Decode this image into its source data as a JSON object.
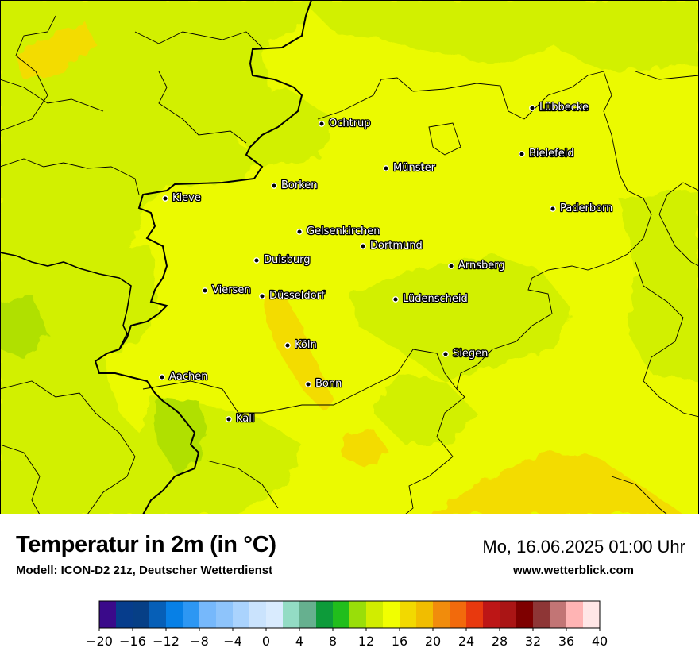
{
  "map": {
    "title": "Temperatur in 2m (in °C)",
    "model": "Modell: ICON-D2 21z, Deutscher Wetterdienst",
    "datetime": "Mo, 16.06.2025 01:00 Uhr",
    "website": "www.wetterblick.com",
    "cities": [
      {
        "name": "Lübbecke",
        "id": "luebbecke"
      },
      {
        "name": "Ochtrup",
        "id": "ochtrup"
      },
      {
        "name": "Bielefeld",
        "id": "bielefeld"
      },
      {
        "name": "Münster",
        "id": "muenster"
      },
      {
        "name": "Borken",
        "id": "borken"
      },
      {
        "name": "Kleve",
        "id": "kleve"
      },
      {
        "name": "Paderborn",
        "id": "paderborn"
      },
      {
        "name": "Gelsenkirchen",
        "id": "gelsenkirchen"
      },
      {
        "name": "Dortmund",
        "id": "dortmund"
      },
      {
        "name": "Duisburg",
        "id": "duisburg"
      },
      {
        "name": "Arnsberg",
        "id": "arnsberg"
      },
      {
        "name": "Viersen",
        "id": "viersen"
      },
      {
        "name": "Düsseldorf",
        "id": "duesseldorf"
      },
      {
        "name": "Lüdenscheid",
        "id": "luedenscheid"
      },
      {
        "name": "Köln",
        "id": "koeln"
      },
      {
        "name": "Siegen",
        "id": "siegen"
      },
      {
        "name": "Aachen",
        "id": "aachen"
      },
      {
        "name": "Bonn",
        "id": "bonn"
      },
      {
        "name": "Kall",
        "id": "kall"
      }
    ]
  },
  "legend": {
    "min": -20,
    "max": 40,
    "step": 2,
    "tick_values": [
      -20,
      -16,
      -12,
      -8,
      -4,
      0,
      4,
      8,
      12,
      16,
      20,
      24,
      28,
      32,
      36,
      40
    ],
    "tick_labels": [
      "−20",
      "−16",
      "−12",
      "−8",
      "−4",
      "0",
      "4",
      "8",
      "12",
      "16",
      "20",
      "24",
      "28",
      "32",
      "36",
      "40"
    ],
    "colors": [
      "#3a0a8a",
      "#063d8c",
      "#063f86",
      "#065fb7",
      "#0780e6",
      "#2d97f3",
      "#76b8fb",
      "#8ec4fb",
      "#aad3fd",
      "#cae3fd",
      "#d9ebfe",
      "#93dcc4",
      "#66b08f",
      "#0d9b3a",
      "#21be1c",
      "#99de09",
      "#d1ed00",
      "#f1ff00",
      "#f2d900",
      "#f1bd00",
      "#f18c0c",
      "#f26a0c",
      "#e8390e",
      "#bd1616",
      "#aa1515",
      "#7e0000",
      "#8e3636",
      "#c27575",
      "#ffb4b4",
      "#ffe6e6"
    ]
  },
  "palette": {
    "land_base": "#ebfa00",
    "land_cool": "#d2f000",
    "land_cooler": "#b0e000",
    "land_warm": "#f3dc00",
    "border_color": "#000000"
  }
}
